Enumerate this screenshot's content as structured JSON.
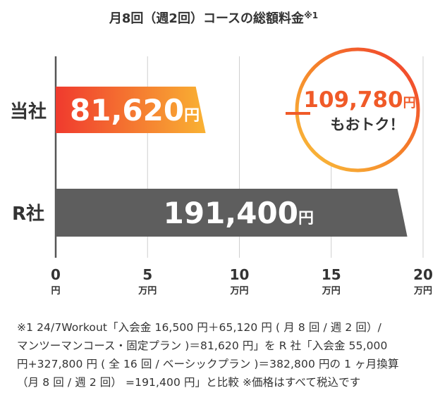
{
  "chart_data": {
    "type": "bar",
    "orientation": "horizontal",
    "title": "月8回（週2回）コースの総額料金",
    "title_note": "※1",
    "categories": [
      "当社",
      "R社"
    ],
    "values": [
      81620,
      191400
    ],
    "value_labels": [
      "81,620",
      "191,400"
    ],
    "value_unit": "円",
    "xlim": [
      0,
      200000
    ],
    "ticks": [
      {
        "value": 0,
        "label": "0",
        "unit": "円"
      },
      {
        "value": 50000,
        "label": "5",
        "unit": "万円"
      },
      {
        "value": 100000,
        "label": "10",
        "unit": "万円"
      },
      {
        "value": 150000,
        "label": "15",
        "unit": "万円"
      },
      {
        "value": 200000,
        "label": "20",
        "unit": "万円"
      }
    ],
    "grid": true,
    "bar_colors": [
      "#f2552a",
      "#5e5e5e"
    ],
    "highlight_gradient": [
      "#f03a2e",
      "#f9b233"
    ]
  },
  "callout": {
    "amount": "109,780",
    "unit": "円",
    "text": "もおトク！"
  },
  "footnote": {
    "lines": [
      "※1 24/7Workout「入会金 16,500 円＋65,120 円 ( 月 8 回 / 週 2 回）/",
      "マンツーマンコース・固定プラン )＝81,620 円」を R 社「入会金 55,000",
      "円+327,800 円 ( 全 16 回 / ベーシックプラン )＝382,800 円の 1 ヶ月換算",
      "（月 8 回 / 週 2 回） =191,400 円」と比較 ※価格はすべて税込です"
    ]
  }
}
